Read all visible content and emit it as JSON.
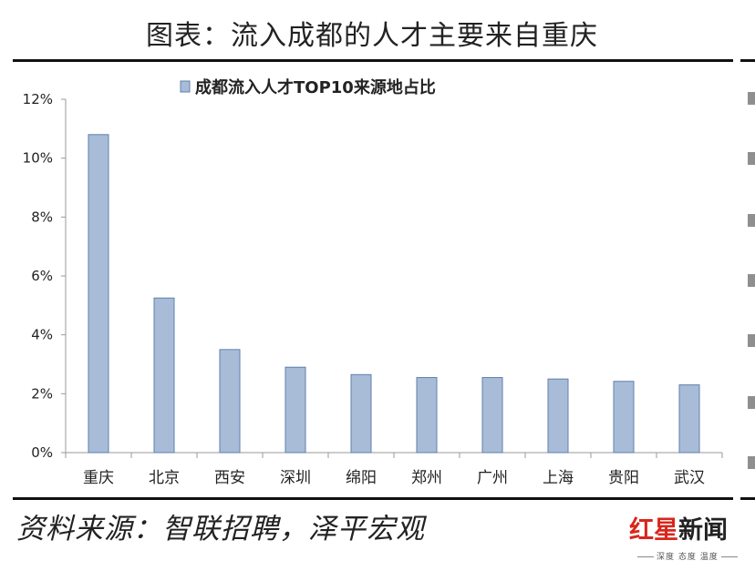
{
  "page": {
    "title": "图表：流入成都的人才主要来自重庆",
    "source": "资料来源：智联招聘，泽平宏观"
  },
  "logo": {
    "main_red": "红",
    "main_star": "星",
    "main_dark": "新闻",
    "sub": "深度 态度 温度"
  },
  "colors": {
    "bar_fill": "#a8bcd8",
    "bar_stroke": "#5f7fae",
    "axis": "#999999"
  },
  "chart_data": {
    "type": "bar",
    "title": "",
    "xlabel": "",
    "ylabel": "",
    "legend": {
      "label": "成都流入人才TOP10来源地占比",
      "position": "top"
    },
    "categories": [
      "重庆",
      "北京",
      "西安",
      "深圳",
      "绵阳",
      "郑州",
      "广州",
      "上海",
      "贵阳",
      "武汉"
    ],
    "series": [
      {
        "name": "成都流入人才TOP10来源地占比",
        "values": [
          10.8,
          5.25,
          3.5,
          2.9,
          2.65,
          2.55,
          2.55,
          2.5,
          2.42,
          2.3
        ]
      }
    ],
    "ylim": [
      0,
      12
    ],
    "yticks": [
      0,
      2,
      4,
      6,
      8,
      10,
      12
    ],
    "ytick_labels": [
      "0%",
      "2%",
      "4%",
      "6%",
      "8%",
      "10%",
      "12%"
    ],
    "grid": false
  }
}
